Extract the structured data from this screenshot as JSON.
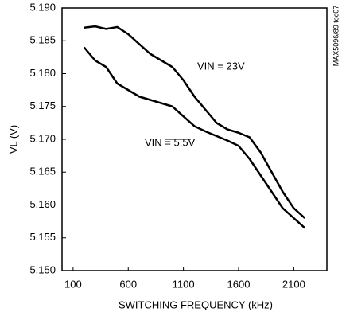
{
  "chart_data": {
    "type": "line",
    "x_label": "SWITCHING FREQUENCY (kHz)",
    "y_label": "VL (V)",
    "side_note": "MAX5096/89 toc07",
    "x": [
      200,
      300,
      400,
      500,
      600,
      700,
      800,
      900,
      1000,
      1100,
      1200,
      1300,
      1400,
      1500,
      1600,
      1700,
      1800,
      1900,
      2000,
      2100,
      2200
    ],
    "series": [
      {
        "name": "VIN = 23V",
        "color": "#000000",
        "values": [
          5.187,
          5.1872,
          5.1868,
          5.1871,
          5.186,
          5.1845,
          5.183,
          5.182,
          5.181,
          5.179,
          5.1765,
          5.1745,
          5.1725,
          5.1715,
          5.171,
          5.1703,
          5.168,
          5.165,
          5.162,
          5.1595,
          5.158
        ]
      },
      {
        "name": "VIN = 5.5V",
        "color": "#000000",
        "values": [
          5.184,
          5.182,
          5.181,
          5.1785,
          5.1775,
          5.1765,
          5.176,
          5.1755,
          5.175,
          5.1735,
          5.172,
          5.1712,
          5.1705,
          5.1698,
          5.169,
          5.167,
          5.1645,
          5.162,
          5.1595,
          5.158,
          5.1565
        ]
      }
    ],
    "xlim": [
      0,
      2400
    ],
    "xticks": [
      100,
      600,
      1100,
      1600,
      2100
    ],
    "ylim": [
      5.15,
      5.19
    ],
    "yticks": [
      {
        "value": 5.15,
        "label": "5.150"
      },
      5.155,
      {
        "value": 5.16,
        "label": "5.160"
      },
      5.165,
      {
        "value": 5.17,
        "label": "5.170"
      },
      5.175,
      {
        "value": 5.18,
        "label": "5.180"
      },
      5.185,
      {
        "value": 5.19,
        "label": "5.190"
      }
    ],
    "grid": false
  }
}
